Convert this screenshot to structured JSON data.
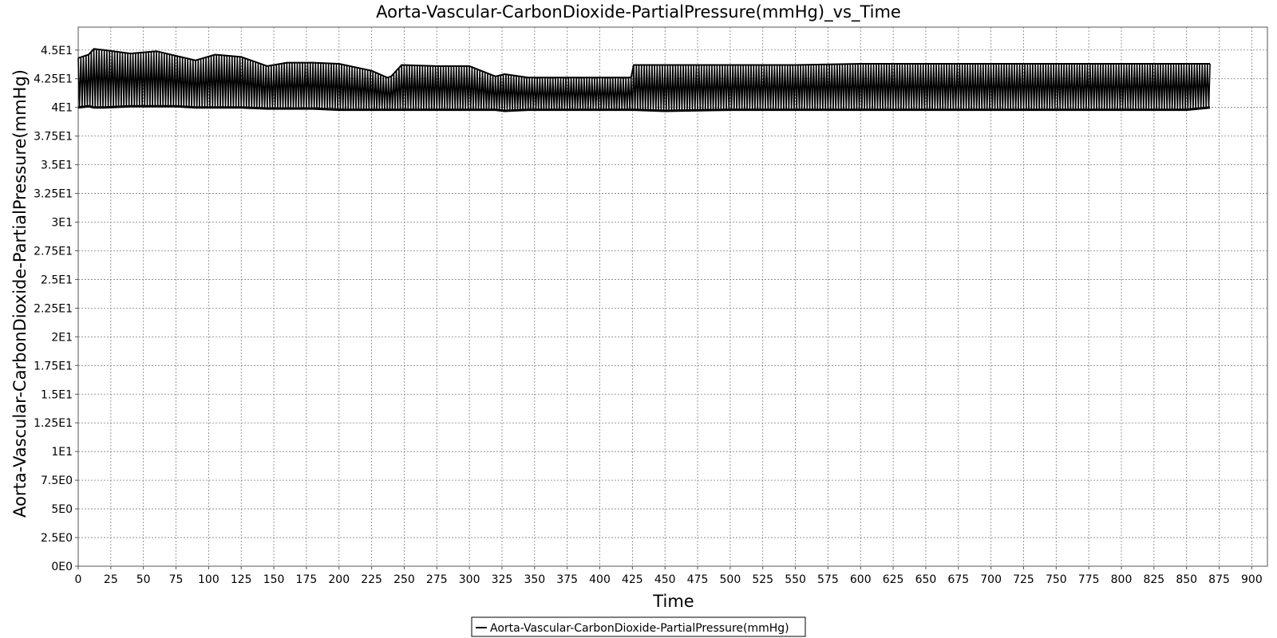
{
  "chart_data": {
    "type": "line",
    "title": "Aorta-Vascular-CarbonDioxide-PartialPressure(mmHg)_vs_Time",
    "xlabel": "Time",
    "ylabel": "Aorta-Vascular-CarbonDioxide-PartialPressure(mmHg)",
    "xlim": [
      0,
      912
    ],
    "ylim": [
      0,
      47
    ],
    "x_ticks": [
      0,
      25,
      50,
      75,
      100,
      125,
      150,
      175,
      200,
      225,
      250,
      275,
      300,
      325,
      350,
      375,
      400,
      425,
      450,
      475,
      500,
      525,
      550,
      575,
      600,
      625,
      650,
      675,
      700,
      725,
      750,
      775,
      800,
      825,
      850,
      875,
      900
    ],
    "x_tick_labels": [
      "0",
      "25",
      "50",
      "75",
      "100",
      "125",
      "150",
      "175",
      "200",
      "225",
      "250",
      "275",
      "300",
      "325",
      "350",
      "375",
      "400",
      "425",
      "450",
      "475",
      "500",
      "525",
      "550",
      "575",
      "600",
      "625",
      "650",
      "675",
      "700",
      "725",
      "750",
      "775",
      "800",
      "825",
      "850",
      "875",
      "900"
    ],
    "y_ticks": [
      0,
      2.5,
      5,
      7.5,
      10,
      12.5,
      15,
      17.5,
      20,
      22.5,
      25,
      27.5,
      30,
      32.5,
      35,
      37.5,
      40,
      42.5,
      45
    ],
    "y_tick_labels": [
      "0E0",
      "2.5E0",
      "5E0",
      "7.5E0",
      "1E1",
      "1.25E1",
      "1.5E1",
      "1.75E1",
      "2E1",
      "2.25E1",
      "2.5E1",
      "2.75E1",
      "3E1",
      "3.25E1",
      "3.5E1",
      "3.75E1",
      "4E1",
      "4.25E1",
      "4.5E1"
    ],
    "grid": true,
    "legend_position": "bottom-center",
    "series": [
      {
        "name": "Aorta-Vascular-CarbonDioxide-PartialPressure(mmHg)",
        "color": "#000000",
        "oscillating": true,
        "cycle_period": 2.0,
        "envelope_x": [
          0,
          8,
          12,
          20,
          40,
          60,
          75,
          90,
          105,
          125,
          145,
          160,
          180,
          200,
          225,
          237,
          240,
          248,
          275,
          300,
          320,
          327,
          345,
          375,
          400,
          424,
          426,
          450,
          500,
          550,
          600,
          650,
          700,
          750,
          800,
          850,
          868
        ],
        "upper": [
          44.3,
          44.6,
          45.1,
          45.0,
          44.7,
          44.9,
          44.5,
          44.1,
          44.6,
          44.4,
          43.6,
          43.9,
          43.9,
          43.8,
          43.2,
          42.6,
          42.7,
          43.7,
          43.6,
          43.6,
          42.7,
          42.9,
          42.6,
          42.6,
          42.6,
          42.6,
          43.7,
          43.7,
          43.7,
          43.7,
          43.8,
          43.8,
          43.8,
          43.8,
          43.8,
          43.8,
          43.8
        ],
        "lower": [
          40.0,
          40.1,
          40.0,
          40.0,
          40.1,
          40.1,
          40.1,
          40.0,
          40.0,
          40.0,
          39.9,
          39.9,
          39.9,
          39.8,
          39.8,
          39.8,
          39.8,
          39.8,
          39.8,
          39.8,
          39.8,
          39.7,
          39.8,
          39.8,
          39.8,
          39.8,
          39.8,
          39.7,
          39.8,
          39.8,
          39.8,
          39.8,
          39.8,
          39.8,
          39.8,
          39.8,
          40.0
        ]
      }
    ]
  }
}
